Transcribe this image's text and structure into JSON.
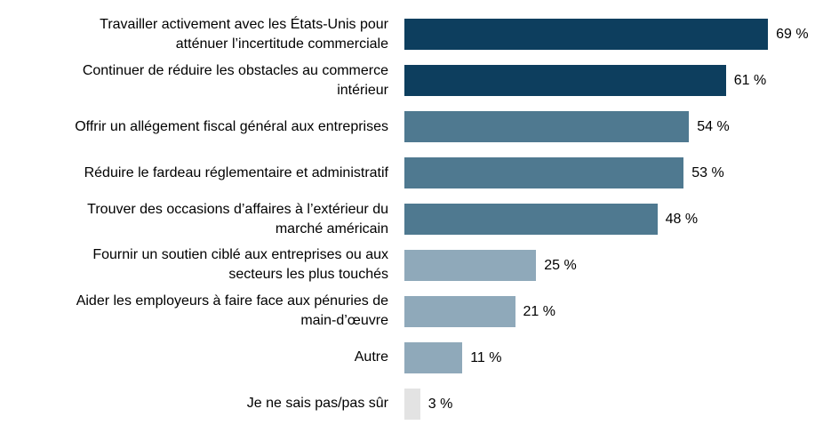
{
  "chart_data": {
    "type": "bar",
    "orientation": "horizontal",
    "title": "",
    "xlabel": "",
    "ylabel": "",
    "xlim": [
      0,
      100
    ],
    "grid": false,
    "legend": false,
    "categories": [
      "Travailler activement avec les États-Unis pour\natténuer l’incertitude commerciale",
      "Continuer de réduire les obstacles au commerce\nintérieur",
      "Offrir un allégement fiscal général aux entreprises",
      "Réduire le fardeau réglementaire et administratif",
      "Trouver des occasions d’affaires à l’extérieur du\nmarché américain",
      "Fournir un soutien ciblé aux entreprises ou aux\nsecteurs les plus touchés",
      "Aider les employeurs à faire face aux pénuries de\nmain-d’œuvre",
      "Autre",
      "Je ne sais pas/pas sûr"
    ],
    "values": [
      69,
      61,
      54,
      53,
      48,
      25,
      21,
      11,
      3
    ],
    "value_labels": [
      "69 %",
      "61 %",
      "54 %",
      "53 %",
      "48 %",
      "25 %",
      "21 %",
      "11 %",
      "3 %"
    ],
    "bar_color_keys": [
      "dark",
      "dark",
      "medium",
      "medium",
      "medium",
      "light",
      "light",
      "light",
      "gray"
    ],
    "colors": {
      "dark": "#0d3e5e",
      "medium": "#4f7990",
      "light": "#8fa9ba",
      "gray": "#e3e3e3"
    }
  }
}
